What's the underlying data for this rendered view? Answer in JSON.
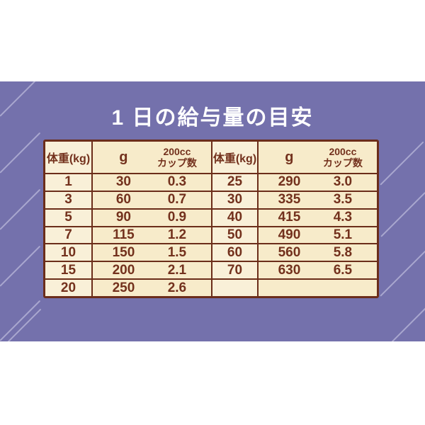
{
  "title": "1 日の給与量の目安",
  "table": {
    "headers": {
      "weight": "体重(kg)",
      "grams": "g",
      "cup_line1": "200cc",
      "cup_line2": "カップ数"
    }
  },
  "chart_data": {
    "type": "table",
    "title": "1 日の給与量の目安",
    "columns": [
      "体重(kg)",
      "g",
      "200ccカップ数",
      "体重(kg)",
      "g",
      "200ccカップ数"
    ],
    "rows": [
      [
        "1",
        "30",
        "0.3",
        "25",
        "290",
        "3.0"
      ],
      [
        "3",
        "60",
        "0.7",
        "30",
        "335",
        "3.5"
      ],
      [
        "5",
        "90",
        "0.9",
        "40",
        "415",
        "4.3"
      ],
      [
        "7",
        "115",
        "1.2",
        "50",
        "490",
        "5.1"
      ],
      [
        "10",
        "150",
        "1.5",
        "60",
        "560",
        "5.8"
      ],
      [
        "15",
        "200",
        "2.1",
        "70",
        "630",
        "6.5"
      ],
      [
        "20",
        "250",
        "2.6",
        "",
        "",
        ""
      ]
    ]
  },
  "colors": {
    "page_bg": "#ffffff",
    "band_bg": "#7471ac",
    "stripe": "#a9a7cf",
    "panel_bg": "#f7ebca",
    "panel_alt_bg": "#f9f0d8",
    "ink": "#73311d",
    "border": "#6b2d1a",
    "title_color": "#ffffff"
  }
}
